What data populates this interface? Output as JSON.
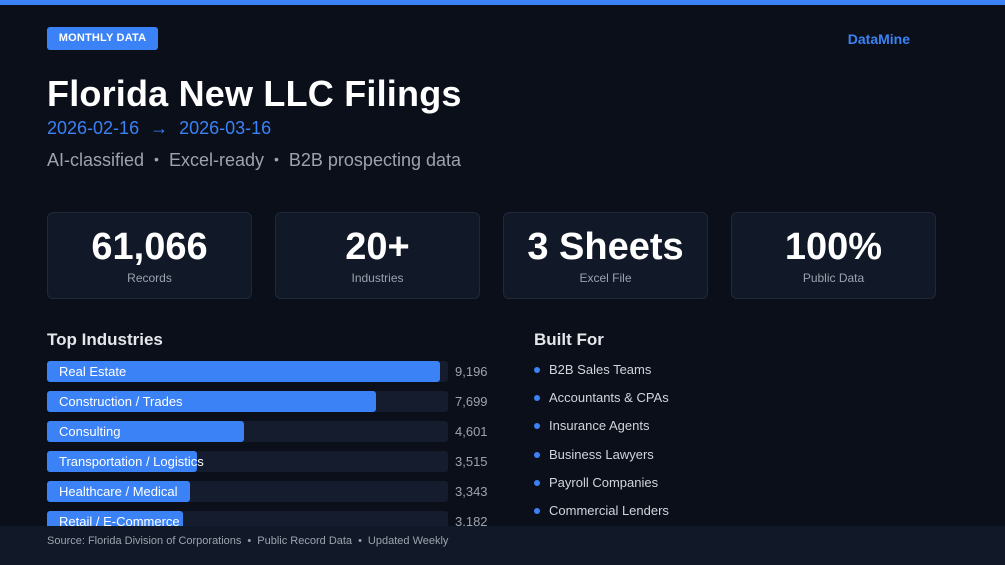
{
  "header": {
    "badge": "MONTHLY DATA",
    "brand": "DataMine",
    "title": "Florida New LLC Filings",
    "date_start": "2026-02-16",
    "date_arrow": "→",
    "date_end": "2026-03-16",
    "tags": [
      "AI-classified",
      "Excel-ready",
      "B2B prospecting data"
    ],
    "tag_separator": "•"
  },
  "stats": [
    {
      "value": "61,066",
      "label": "Records"
    },
    {
      "value": "20+",
      "label": "Industries"
    },
    {
      "value": "3 Sheets",
      "label": "Excel File"
    },
    {
      "value": "100%",
      "label": "Public Data"
    }
  ],
  "industries": {
    "title": "Top Industries",
    "max_value": 9196,
    "items": [
      {
        "label": "Real Estate",
        "value_text": "9,196",
        "value": 9196
      },
      {
        "label": "Construction / Trades",
        "value_text": "7,699",
        "value": 7699
      },
      {
        "label": "Consulting",
        "value_text": "4,601",
        "value": 4601
      },
      {
        "label": "Transportation / Logistics",
        "value_text": "3,515",
        "value": 3515
      },
      {
        "label": "Healthcare / Medical",
        "value_text": "3,343",
        "value": 3343
      },
      {
        "label": "Retail / E-Commerce",
        "value_text": "3,182",
        "value": 3182
      }
    ]
  },
  "built_for": {
    "title": "Built For",
    "items": [
      "B2B Sales Teams",
      "Accountants & CPAs",
      "Insurance Agents",
      "Business Lawyers",
      "Payroll Companies",
      "Commercial Lenders"
    ]
  },
  "footer": {
    "parts": [
      "Source: Florida Division of Corporations",
      "Public Record Data",
      "Updated Weekly"
    ],
    "separator": "•"
  },
  "colors": {
    "accent": "#3b82f6",
    "background": "#0b0f19",
    "card": "#111827"
  }
}
